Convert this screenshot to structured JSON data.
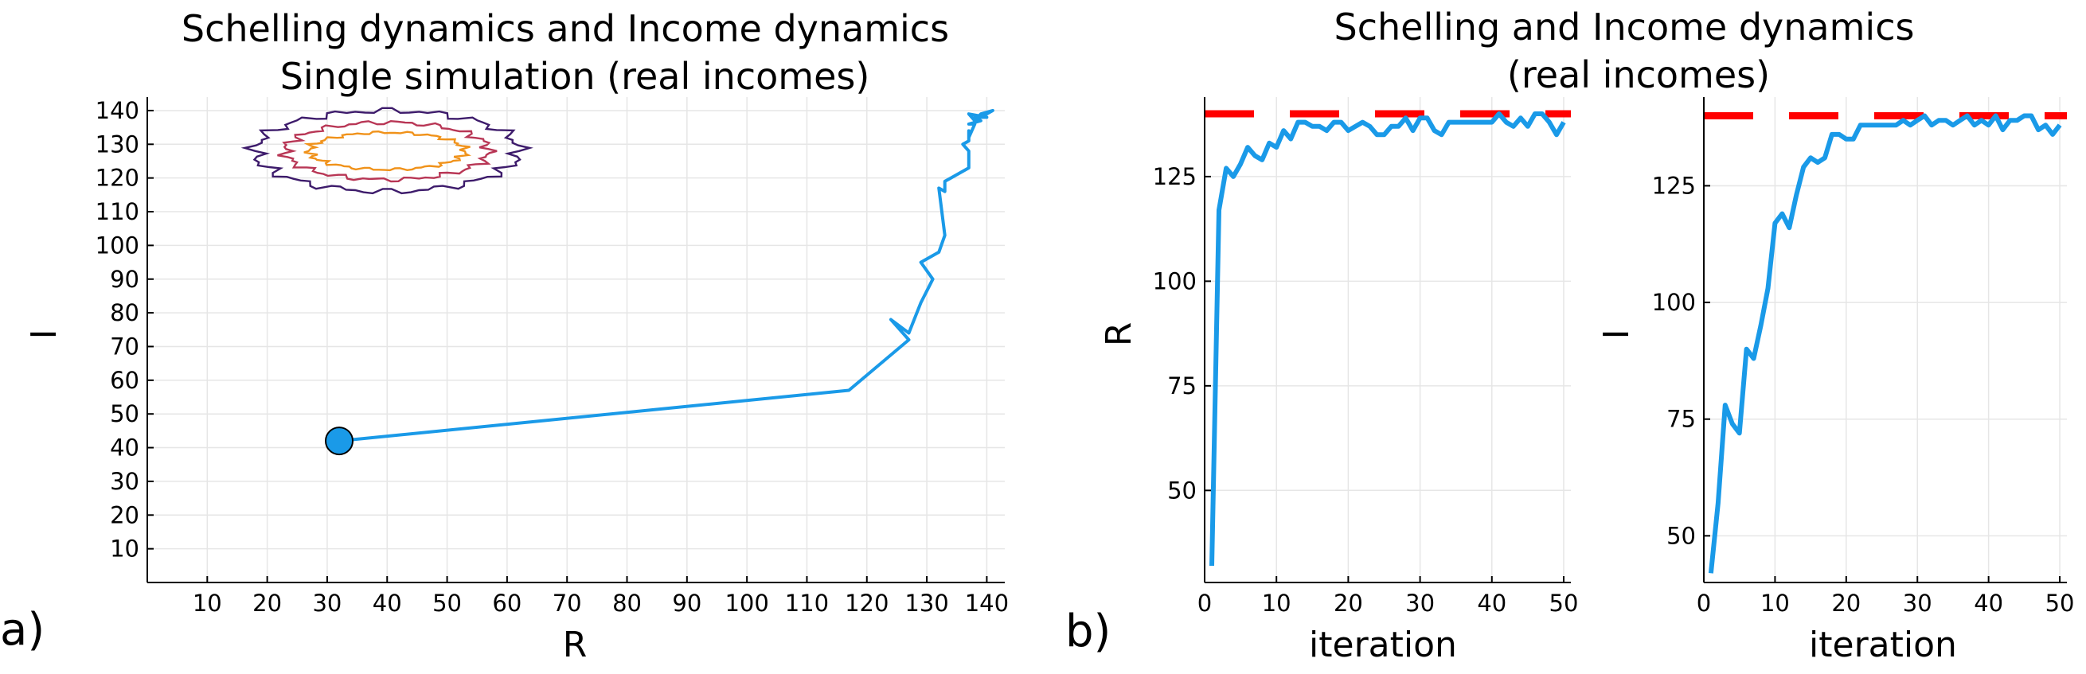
{
  "panel_labels": [
    "a)",
    "b)"
  ],
  "colors": {
    "series": "#1a9ae8",
    "dashed_reference": "#ff0000",
    "contour_outer": "#3d1b6b",
    "contour_middle": "#b83655",
    "contour_inner": "#f0921a",
    "marker_fill": "#1a9ae8"
  },
  "chart_data": [
    {
      "id": "phase",
      "type": "line",
      "title": "Schelling dynamics and Income dynamics",
      "subtitle": "Single simulation (real incomes)",
      "xlabel": "R",
      "ylabel": "I",
      "xlim": [
        0,
        143
      ],
      "ylim": [
        0,
        144
      ],
      "xticks": [
        10,
        20,
        30,
        40,
        50,
        60,
        70,
        80,
        90,
        100,
        110,
        120,
        130,
        140
      ],
      "yticks": [
        10,
        20,
        30,
        40,
        50,
        60,
        70,
        80,
        90,
        100,
        110,
        120,
        130,
        140
      ],
      "grid": true,
      "start_marker": {
        "x": 32,
        "y": 42
      },
      "trajectory": {
        "x": [
          32,
          117,
          127,
          124,
          127,
          129,
          131,
          129,
          132,
          133,
          132,
          133,
          133,
          134,
          137,
          137,
          136,
          137,
          137,
          137,
          138,
          137,
          139,
          138,
          140,
          137,
          138,
          139,
          141,
          138,
          139,
          141
        ],
        "y": [
          42,
          57,
          72,
          78,
          74,
          83,
          90,
          95,
          98,
          103,
          117,
          116,
          119,
          120,
          123,
          128,
          130,
          131,
          134,
          132,
          136,
          136,
          137,
          138,
          138,
          139,
          137,
          139,
          140,
          138,
          138,
          140
        ]
      },
      "contours": [
        {
          "level": "outer",
          "cx": 40,
          "cy": 128,
          "rx": 22,
          "ry": 12
        },
        {
          "level": "middle",
          "cx": 40,
          "cy": 128,
          "rx": 17,
          "ry": 8.5
        },
        {
          "level": "inner",
          "cx": 40,
          "cy": 128,
          "rx": 13,
          "ry": 5.5
        }
      ]
    },
    {
      "id": "R_over_iteration",
      "type": "line",
      "title": "Schelling and Income dynamics",
      "subtitle": "(real incomes)",
      "xlabel": "iteration",
      "ylabel": "R",
      "xlim": [
        0,
        51
      ],
      "ylim": [
        28,
        144
      ],
      "xticks": [
        0,
        10,
        20,
        30,
        40,
        50
      ],
      "yticks": [
        50,
        75,
        100,
        125
      ],
      "grid": true,
      "reference_line": {
        "y": 140,
        "style": "dashed"
      },
      "x": [
        1,
        2,
        3,
        4,
        5,
        6,
        7,
        8,
        9,
        10,
        11,
        12,
        13,
        14,
        15,
        16,
        17,
        18,
        19,
        20,
        21,
        22,
        23,
        24,
        25,
        26,
        27,
        28,
        29,
        30,
        31,
        32,
        33,
        34,
        35,
        36,
        37,
        38,
        39,
        40,
        41,
        42,
        43,
        44,
        45,
        46,
        47,
        48,
        49,
        50
      ],
      "values": [
        32,
        117,
        127,
        125,
        128,
        132,
        130,
        129,
        133,
        132,
        136,
        134,
        138,
        138,
        137,
        137,
        136,
        138,
        138,
        136,
        137,
        138,
        137,
        135,
        135,
        137,
        137,
        139,
        136,
        139,
        139,
        136,
        135,
        138,
        138,
        138,
        138,
        138,
        138,
        138,
        140,
        138,
        137,
        139,
        137,
        140,
        140,
        138,
        135,
        138
      ]
    },
    {
      "id": "I_over_iteration",
      "type": "line",
      "xlabel": "iteration",
      "ylabel": "I",
      "xlim": [
        0,
        51
      ],
      "ylim": [
        40,
        144
      ],
      "xticks": [
        0,
        10,
        20,
        30,
        40,
        50
      ],
      "yticks": [
        50,
        75,
        100,
        125
      ],
      "grid": true,
      "reference_line": {
        "y": 140,
        "style": "dashed"
      },
      "x": [
        1,
        2,
        3,
        4,
        5,
        6,
        7,
        8,
        9,
        10,
        11,
        12,
        13,
        14,
        15,
        16,
        17,
        18,
        19,
        20,
        21,
        22,
        23,
        24,
        25,
        26,
        27,
        28,
        29,
        30,
        31,
        32,
        33,
        34,
        35,
        36,
        37,
        38,
        39,
        40,
        41,
        42,
        43,
        44,
        45,
        46,
        47,
        48,
        49,
        50
      ],
      "values": [
        42,
        57,
        78,
        74,
        72,
        90,
        88,
        95,
        103,
        117,
        119,
        116,
        123,
        129,
        131,
        130,
        131,
        136,
        136,
        135,
        135,
        138,
        138,
        138,
        138,
        138,
        138,
        139,
        138,
        139,
        140,
        138,
        139,
        139,
        138,
        139,
        140,
        138,
        139,
        138,
        140,
        137,
        139,
        139,
        140,
        140,
        137,
        138,
        136,
        138
      ]
    }
  ]
}
